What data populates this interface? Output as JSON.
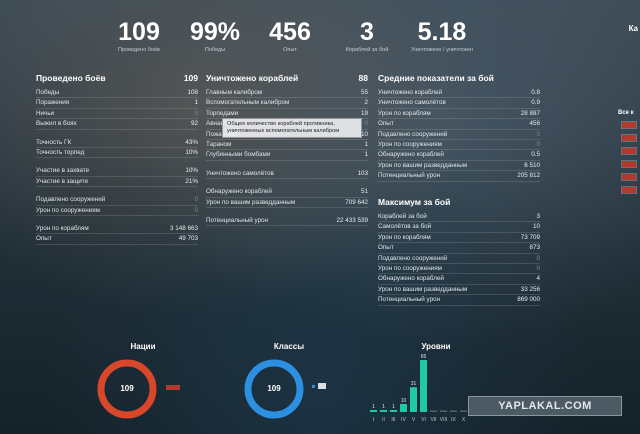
{
  "top_stats": [
    {
      "value": "109",
      "label": "Проведено боёв"
    },
    {
      "value": "99%",
      "label": "Победы"
    },
    {
      "value": "456",
      "label": "Опыт"
    },
    {
      "value": "3",
      "label": "Кораблей за бой"
    },
    {
      "value": "5.18",
      "label": "Уничтожено / уничтожен"
    }
  ],
  "corner_label": "Ка",
  "battles": {
    "header": {
      "label": "Проведено боёв",
      "value": "109"
    },
    "rows": [
      {
        "label": "Победы",
        "value": "108"
      },
      {
        "label": "Поражения",
        "value": "1"
      },
      {
        "label": "Ничьи",
        "value": "0"
      },
      {
        "label": "Выжил в боях",
        "value": "92"
      },
      {
        "label": "Точность ГК",
        "value": "43%"
      },
      {
        "label": "Точность торпед",
        "value": "10%"
      },
      {
        "label": "Участие в захвате",
        "value": "10%"
      },
      {
        "label": "Участие в защите",
        "value": "21%"
      },
      {
        "label": "Подавлено сооружений",
        "value": "0"
      },
      {
        "label": "Урон по сооружениям",
        "value": "0"
      },
      {
        "label": "Урон по кораблям",
        "value": "3 148 663"
      },
      {
        "label": "Опыт",
        "value": "49 703"
      }
    ]
  },
  "destroyed": {
    "header": {
      "label": "Уничтожено кораблей",
      "value": "88"
    },
    "rows": [
      {
        "label": "Главным калибром",
        "value": "55"
      },
      {
        "label": "Вспомогательным калибром",
        "value": "2"
      },
      {
        "label": "Торпедами",
        "value": "19"
      },
      {
        "label": "Авиацией",
        "value": "0"
      },
      {
        "label": "Пожарами",
        "value": "10"
      },
      {
        "label": "Тараном",
        "value": "1"
      },
      {
        "label": "Глубинными бомбами",
        "value": "1"
      },
      {
        "label": "Уничтожено самолётов",
        "value": "103"
      },
      {
        "label": "Обнаружено кораблей",
        "value": "51"
      },
      {
        "label": "Урон по вашим разведданным",
        "value": "709 642"
      },
      {
        "label": "Потенциальный урон",
        "value": "22 433 539"
      }
    ],
    "tooltip": "Общее количество кораблей противника, уничтоженных вспомогательным калибром"
  },
  "averages": {
    "header": {
      "label": "Средние показатели за бой"
    },
    "rows": [
      {
        "label": "Уничтожено кораблей",
        "value": "0.8"
      },
      {
        "label": "Уничтожено самолётов",
        "value": "0.9"
      },
      {
        "label": "Урон по кораблям",
        "value": "28 887"
      },
      {
        "label": "Опыт",
        "value": "456"
      },
      {
        "label": "Подавлено сооружений",
        "value": "0"
      },
      {
        "label": "Урон по сооружениям",
        "value": "0"
      },
      {
        "label": "Обнаружено кораблей",
        "value": "0.5"
      },
      {
        "label": "Урон по вашим разведданным",
        "value": "6 510"
      },
      {
        "label": "Потенциальный урон",
        "value": "205 812"
      }
    ]
  },
  "maximum": {
    "header": {
      "label": "Максимум за бой"
    },
    "rows": [
      {
        "label": "Кораблей за бой",
        "value": "3"
      },
      {
        "label": "Самолётов за бой",
        "value": "10"
      },
      {
        "label": "Урон по кораблям",
        "value": "73 709"
      },
      {
        "label": "Опыт",
        "value": "873"
      },
      {
        "label": "Подавлено сооружений",
        "value": "0"
      },
      {
        "label": "Урон по сооружениям",
        "value": "0"
      },
      {
        "label": "Обнаружено кораблей",
        "value": "4"
      },
      {
        "label": "Урон по вашим разведданным",
        "value": "33 256"
      },
      {
        "label": "Потенциальный урон",
        "value": "869 000"
      }
    ]
  },
  "side_list": {
    "header": "Все к"
  },
  "charts": {
    "nations": {
      "title": "Нации",
      "center": "109",
      "color": "#d9472b"
    },
    "classes": {
      "title": "Классы",
      "center": "109",
      "color": "#2d8fe0"
    },
    "tiers": {
      "title": "Уровни"
    }
  },
  "chart_data": {
    "type": "bar",
    "title": "Уровни",
    "categories": [
      "I",
      "II",
      "III",
      "IV",
      "V",
      "VI",
      "VII",
      "VIII",
      "IX",
      "X"
    ],
    "values": [
      1,
      1,
      1,
      10,
      31,
      65,
      0,
      0,
      0,
      0
    ],
    "value_labels": [
      "1",
      "1",
      "1",
      "10",
      "31",
      "65",
      "",
      "",
      "",
      ""
    ],
    "ylim": [
      0,
      65
    ],
    "bar_color": "#1ec9a3",
    "empty_color": "#56646c",
    "grid": false
  },
  "watermark": "YAPLAKAL.COM"
}
